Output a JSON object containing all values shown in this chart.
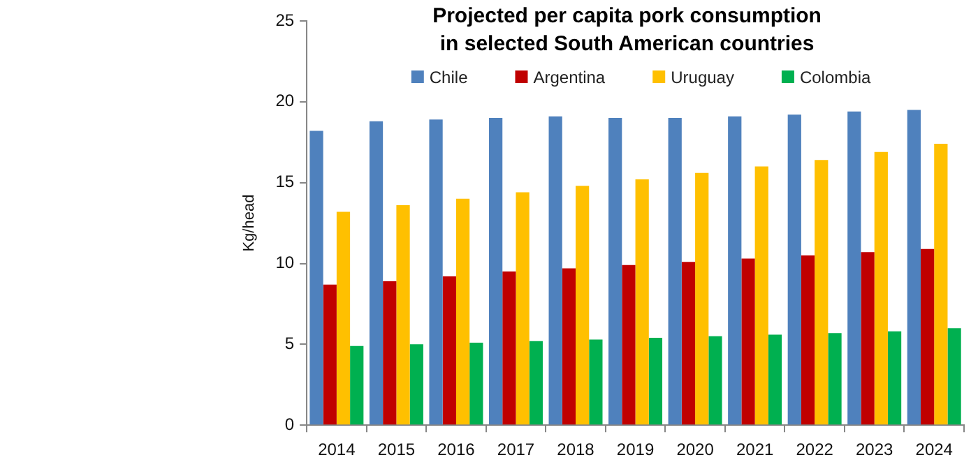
{
  "chart_data": {
    "type": "bar",
    "title": "Projected per capita pork consumption in selected South American countries",
    "ylabel": "Kg/head",
    "categories": [
      "2014",
      "2015",
      "2016",
      "2017",
      "2018",
      "2019",
      "2020",
      "2021",
      "2022",
      "2023",
      "2024"
    ],
    "series": [
      {
        "name": "Chile",
        "color": "#4f81bd",
        "values": [
          18.2,
          18.8,
          18.9,
          19.0,
          19.1,
          19.0,
          19.0,
          19.1,
          19.2,
          19.4,
          19.5
        ]
      },
      {
        "name": "Argentina",
        "color": "#c00000",
        "values": [
          8.7,
          8.9,
          9.2,
          9.5,
          9.7,
          9.9,
          10.1,
          10.3,
          10.5,
          10.7,
          10.9
        ]
      },
      {
        "name": "Uruguay",
        "color": "#ffc000",
        "values": [
          13.2,
          13.6,
          14.0,
          14.4,
          14.8,
          15.2,
          15.6,
          16.0,
          16.4,
          16.9,
          17.4
        ]
      },
      {
        "name": "Colombia",
        "color": "#00b050",
        "values": [
          4.9,
          5.0,
          5.1,
          5.2,
          5.3,
          5.4,
          5.5,
          5.6,
          5.7,
          5.8,
          6.0
        ]
      }
    ],
    "ylim": [
      0,
      25
    ],
    "yticks": [
      0,
      5,
      10,
      15,
      20,
      25
    ],
    "grid": false,
    "legend": "top"
  }
}
